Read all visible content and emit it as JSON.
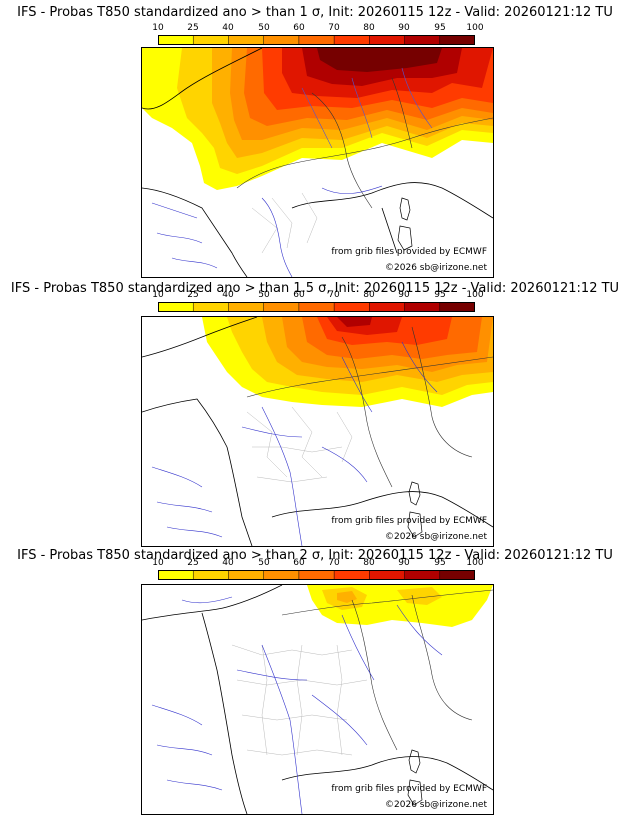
{
  "legend": {
    "ticks": [
      "10",
      "25",
      "40",
      "50",
      "60",
      "70",
      "80",
      "90",
      "95",
      "100"
    ],
    "colors": [
      "#ffff00",
      "#ffd400",
      "#ffb000",
      "#ff9000",
      "#ff6a00",
      "#ff3b00",
      "#e01600",
      "#b00000",
      "#760000"
    ]
  },
  "panels": [
    {
      "title": "IFS - Probas T850  standardized ano > than 1 σ, Init: 20260115 12z - Valid: 20260121:12 TU",
      "sigma": 1,
      "grib_credit": "from grib files provided by ECMWF",
      "copyright": "©2026 sb@irizone.net"
    },
    {
      "title": "IFS - Probas T850  standardized ano > than 1.5 σ, Init: 20260115 12z - Valid: 20260121:12 TU",
      "sigma": 1.5,
      "grib_credit": "from grib files provided by ECMWF",
      "copyright": "©2026 sb@irizone.net"
    },
    {
      "title": "IFS - Probas T850  standardized ano > than 2 σ, Init: 20260115 12z - Valid: 20260121:12 TU",
      "sigma": 2,
      "grib_credit": "from grib files provided by ECMWF",
      "copyright": "©2026 sb@irizone.net"
    }
  ]
}
